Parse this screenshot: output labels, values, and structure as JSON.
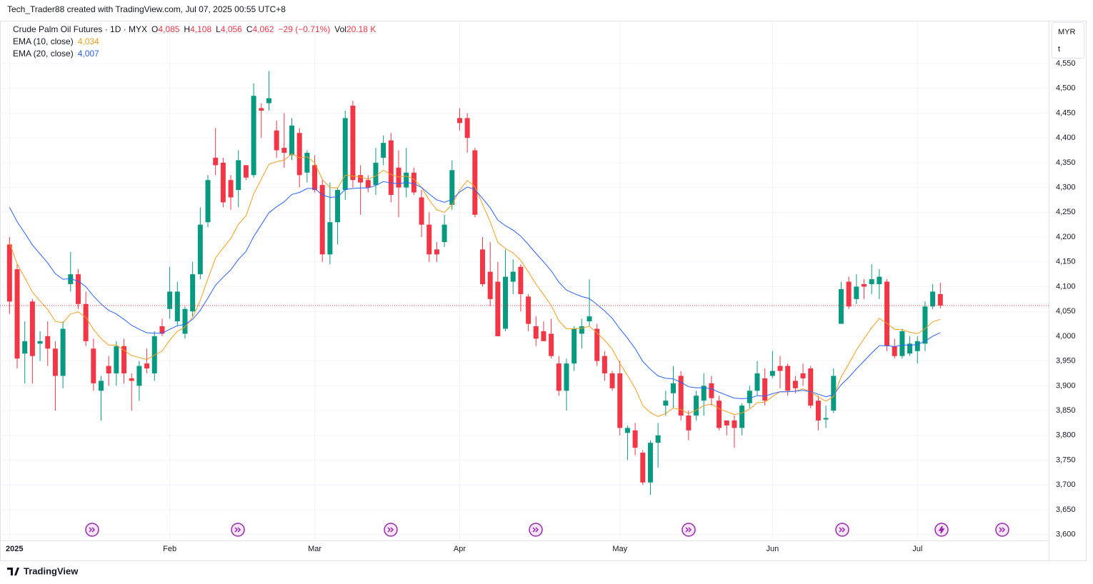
{
  "header": {
    "text": "Tech_Trader88 created with TradingView.com, Jul 07, 2025 00:55 UTC+8"
  },
  "footer": {
    "brand": "TradingView"
  },
  "chart_data": {
    "type": "candlestick",
    "title": "Crude Palm Oil Futures · 1D · MYX",
    "ohlc_legend": [
      {
        "key": "O",
        "label": "4,085"
      },
      {
        "key": "H",
        "label": "4,108"
      },
      {
        "key": "L",
        "label": "4,056"
      },
      {
        "key": "C",
        "label": "4,062"
      }
    ],
    "change_label": "−29 (−0.71%)",
    "volume": {
      "key": "Vol",
      "label": "20.18 K"
    },
    "currency": "MYR",
    "unit": "t",
    "up_color": "#089981",
    "down_color": "#f23645",
    "grid": true,
    "categories": [
      "2025",
      null,
      null,
      null,
      null,
      null,
      null,
      null,
      null,
      null,
      null,
      null,
      null,
      null,
      null,
      null,
      null,
      null,
      null,
      null,
      null,
      "Feb",
      null,
      null,
      null,
      null,
      null,
      null,
      null,
      null,
      null,
      null,
      null,
      null,
      null,
      null,
      null,
      null,
      null,
      null,
      "Mar",
      null,
      null,
      null,
      null,
      null,
      null,
      null,
      null,
      null,
      null,
      null,
      null,
      null,
      null,
      null,
      null,
      null,
      null,
      "Apr",
      null,
      null,
      null,
      null,
      null,
      null,
      null,
      null,
      null,
      null,
      null,
      null,
      null,
      null,
      null,
      null,
      null,
      null,
      null,
      null,
      "May",
      null,
      null,
      null,
      null,
      null,
      null,
      null,
      null,
      null,
      null,
      null,
      null,
      null,
      null,
      null,
      null,
      null,
      null,
      null,
      "Jun",
      null,
      null,
      null,
      null,
      null,
      null,
      null,
      null,
      null,
      null,
      null,
      null,
      null,
      null,
      null,
      null,
      null,
      null,
      "Jul",
      null,
      null,
      null
    ],
    "open": [
      4185,
      4135,
      3965,
      4070,
      3985,
      4000,
      3975,
      3920,
      4105,
      4125,
      4065,
      3975,
      3890,
      3940,
      3925,
      3980,
      3915,
      3900,
      3945,
      3925,
      4020,
      4055,
      4030,
      4005,
      4050,
      4125,
      4230,
      4360,
      4350,
      4315,
      4295,
      4345,
      4325,
      4460,
      4470,
      4415,
      4380,
      4365,
      4410,
      4330,
      4345,
      4305,
      4165,
      4230,
      4295,
      4465,
      4325,
      4315,
      4305,
      4360,
      4395,
      4340,
      4300,
      4330,
      4280,
      4225,
      4175,
      4190,
      4265,
      4440,
      4440,
      4375,
      4175,
      4130,
      4110,
      4015,
      4110,
      4140,
      4080,
      4020,
      4010,
      4005,
      3945,
      3890,
      3945,
      4005,
      4030,
      4015,
      3960,
      3925,
      3925,
      3805,
      3810,
      3765,
      3705,
      3785,
      3860,
      3885,
      3920,
      3840,
      3840,
      3870,
      3905,
      3870,
      3830,
      3830,
      3815,
      3865,
      3890,
      3915,
      3920,
      3940,
      3940,
      3910,
      3925,
      3935,
      3870,
      3832,
      3850,
      4025,
      4110,
      4075,
      4105,
      4105,
      4105,
      4110,
      3980,
      3960,
      3965,
      3970,
      3985,
      4060,
      4085
    ],
    "high": [
      4200,
      4145,
      4030,
      4075,
      4010,
      4030,
      3990,
      4030,
      4170,
      4135,
      4090,
      3995,
      3920,
      3960,
      3990,
      3995,
      3925,
      3950,
      3975,
      4010,
      4035,
      4140,
      4110,
      4060,
      4150,
      4260,
      4325,
      4420,
      4360,
      4325,
      4375,
      4345,
      4510,
      4470,
      4535,
      4435,
      4450,
      4440,
      4420,
      4375,
      4365,
      4315,
      4310,
      4300,
      4455,
      4475,
      4345,
      4325,
      4380,
      4405,
      4410,
      4375,
      4380,
      4340,
      4295,
      4250,
      4190,
      4245,
      4355,
      4460,
      4450,
      4380,
      4200,
      4190,
      4150,
      4175,
      4155,
      4145,
      4085,
      4040,
      4030,
      4035,
      3960,
      3955,
      4020,
      4035,
      4115,
      4025,
      3970,
      3930,
      3950,
      3820,
      3825,
      3770,
      3790,
      3825,
      3890,
      3940,
      3930,
      3850,
      3890,
      3925,
      3920,
      3880,
      3830,
      3840,
      3865,
      3900,
      3950,
      3935,
      3970,
      3960,
      3945,
      3920,
      3945,
      3940,
      3880,
      3860,
      3935,
      4110,
      4120,
      4125,
      4115,
      4145,
      4135,
      4115,
      3995,
      4015,
      4000,
      4000,
      4070,
      4105,
      4108
    ],
    "low": [
      4045,
      3935,
      3905,
      3905,
      3950,
      3940,
      3850,
      3895,
      4090,
      4055,
      3980,
      3890,
      3830,
      3900,
      3900,
      3905,
      3850,
      3870,
      3925,
      3910,
      4000,
      4035,
      4020,
      3995,
      4040,
      4115,
      4220,
      4325,
      4260,
      4255,
      4260,
      4315,
      4320,
      4400,
      4455,
      4360,
      4340,
      4355,
      4300,
      4310,
      4290,
      4150,
      4145,
      4185,
      4275,
      4300,
      4245,
      4290,
      4285,
      4345,
      4270,
      4240,
      4280,
      4285,
      4200,
      4150,
      4150,
      4180,
      4255,
      4415,
      4370,
      4240,
      4100,
      4060,
      4000,
      4010,
      4085,
      4050,
      4010,
      3980,
      3990,
      3955,
      3880,
      3850,
      3930,
      3975,
      4020,
      3940,
      3910,
      3890,
      3800,
      3750,
      3760,
      3700,
      3680,
      3735,
      3840,
      3855,
      3830,
      3790,
      3830,
      3840,
      3860,
      3810,
      3800,
      3775,
      3800,
      3855,
      3880,
      3860,
      3915,
      3895,
      3880,
      3885,
      3900,
      3855,
      3810,
      3815,
      3845,
      4025,
      4055,
      4065,
      4075,
      4085,
      4075,
      3970,
      3955,
      3955,
      3960,
      3945,
      3970,
      4055,
      4056
    ],
    "close": [
      4070,
      3955,
      3990,
      3960,
      3990,
      3975,
      3920,
      4015,
      4125,
      4065,
      3990,
      3905,
      3910,
      3925,
      3980,
      3925,
      3910,
      3940,
      3935,
      4000,
      4005,
      4090,
      4090,
      4055,
      4125,
      4225,
      4315,
      4345,
      4270,
      4280,
      4355,
      4320,
      4485,
      4455,
      4480,
      4375,
      4370,
      4425,
      4325,
      4370,
      4295,
      4165,
      4230,
      4295,
      4440,
      4315,
      4310,
      4300,
      4350,
      4390,
      4285,
      4300,
      4330,
      4290,
      4225,
      4165,
      4165,
      4225,
      4335,
      4430,
      4400,
      4245,
      4105,
      4075,
      4000,
      4120,
      4130,
      4085,
      4025,
      3995,
      3990,
      3960,
      3890,
      3945,
      4015,
      4020,
      4040,
      3950,
      3925,
      3895,
      3815,
      3815,
      3775,
      3705,
      3785,
      3800,
      3870,
      3905,
      3840,
      3810,
      3880,
      3900,
      3875,
      3815,
      3820,
      3815,
      3860,
      3890,
      3925,
      3870,
      3930,
      3930,
      3890,
      3895,
      3915,
      3860,
      3830,
      3835,
      3920,
      4095,
      4060,
      4100,
      4100,
      4115,
      4120,
      3980,
      3960,
      4010,
      3985,
      3990,
      4060,
      4090,
      4062
    ],
    "series": [
      {
        "name": "EMA (10, close)",
        "color": "#f59e1b",
        "legend_value": "4,034",
        "values": [
          4189,
          4146,
          4118,
          4089,
          4071,
          4054,
          4030,
          4027,
          4045,
          4049,
          4038,
          4014,
          3995,
          3982,
          3982,
          3972,
          3961,
          3957,
          3953,
          3962,
          3970,
          3992,
          4010,
          4018,
          4038,
          4072,
          4116,
          4158,
          4178,
          4197,
          4226,
          4243,
          4287,
          4317,
          4347,
          4352,
          4355,
          4368,
          4360,
          4362,
          4350,
          4316,
          4300,
          4299,
          4325,
          4323,
          4321,
          4317,
          4323,
          4335,
          4326,
          4321,
          4323,
          4317,
          4300,
          4275,
          4255,
          4250,
          4265,
          4295,
          4314,
          4302,
          4266,
          4231,
          4189,
          4177,
          4168,
          4153,
          4130,
          4105,
          4084,
          4062,
          4031,
          4015,
          4015,
          4016,
          4020,
          4007,
          3992,
          3974,
          3945,
          3921,
          3895,
          3860,
          3846,
          3838,
          3844,
          3855,
          3852,
          3844,
          3851,
          3860,
          3863,
          3854,
          3848,
          3842,
          3845,
          3853,
          3866,
          3867,
          3878,
          3888,
          3888,
          3889,
          3894,
          3888,
          3877,
          3869,
          3878,
          3918,
          3944,
          3972,
          3995,
          4017,
          4036,
          4026,
          4014,
          4013,
          4008,
          4005,
          4015,
          4029,
          4034
        ]
      },
      {
        "name": "EMA (20, close)",
        "color": "#2962ff",
        "legend_value": "4,007",
        "values": [
          4260,
          4231,
          4208,
          4184,
          4166,
          4148,
          4126,
          4115,
          4116,
          4111,
          4100,
          4081,
          4065,
          4052,
          4045,
          4034,
          4022,
          4014,
          4007,
          4006,
          4006,
          4014,
          4021,
          4024,
          4034,
          4052,
          4077,
          4103,
          4119,
          4134,
          4155,
          4171,
          4201,
          4225,
          4249,
          4261,
          4271,
          4286,
          4290,
          4298,
          4298,
          4285,
          4280,
          4281,
          4296,
          4298,
          4299,
          4299,
          4304,
          4312,
          4309,
          4308,
          4310,
          4308,
          4300,
          4287,
          4275,
          4270,
          4276,
          4291,
          4301,
          4296,
          4278,
          4259,
          4234,
          4223,
          4214,
          4202,
          4185,
          4167,
          4150,
          4132,
          4109,
          4093,
          4086,
          4080,
          4076,
          4064,
          4051,
          4036,
          4015,
          3996,
          3975,
          3949,
          3933,
          3920,
          3915,
          3914,
          3907,
          3898,
          3896,
          3896,
          3894,
          3887,
          3881,
          3875,
          3874,
          3875,
          3880,
          3879,
          3884,
          3888,
          3888,
          3889,
          3891,
          3888,
          3883,
          3878,
          3882,
          3902,
          3917,
          3934,
          3950,
          3966,
          3981,
          3981,
          3979,
          3982,
          3982,
          3983,
          3990,
          4000,
          4007
        ]
      }
    ],
    "ylim": [
      3588,
      4635
    ],
    "yticks": [
      {
        "value": 3600,
        "label": "3,600"
      },
      {
        "value": 3650,
        "label": "3,650"
      },
      {
        "value": 3700,
        "label": "3,700"
      },
      {
        "value": 3750,
        "label": "3,750"
      },
      {
        "value": 3800,
        "label": "3,800"
      },
      {
        "value": 3850,
        "label": "3,850"
      },
      {
        "value": 3900,
        "label": "3,900"
      },
      {
        "value": 3950,
        "label": "3,950"
      },
      {
        "value": 4000,
        "label": "4,000"
      },
      {
        "value": 4050,
        "label": "4,050"
      },
      {
        "value": 4100,
        "label": "4,100"
      },
      {
        "value": 4150,
        "label": "4,150"
      },
      {
        "value": 4200,
        "label": "4,200"
      },
      {
        "value": 4250,
        "label": "4,250"
      },
      {
        "value": 4300,
        "label": "4,300"
      },
      {
        "value": 4350,
        "label": "4,350"
      },
      {
        "value": 4400,
        "label": "4,400"
      },
      {
        "value": 4450,
        "label": "4,450"
      },
      {
        "value": 4500,
        "label": "4,500"
      },
      {
        "value": 4550,
        "label": "4,550"
      }
    ]
  }
}
